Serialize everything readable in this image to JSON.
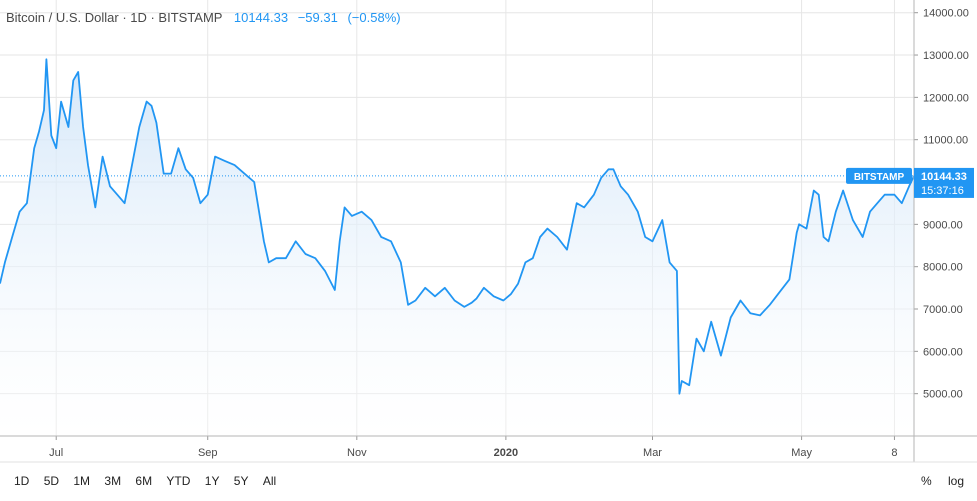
{
  "header": {
    "title": "Bitcoin / U.S. Dollar · 1D · BITSTAMP",
    "last": "10144.33",
    "change": "−59.31",
    "change_pct": "(−0.58%)"
  },
  "price_tag": {
    "exchange": "BITSTAMP",
    "value": "10144.33",
    "countdown": "15:37:16"
  },
  "toolbar": {
    "ranges": [
      "1D",
      "5D",
      "1M",
      "3M",
      "6M",
      "YTD",
      "1Y",
      "5Y",
      "All"
    ],
    "percent_label": "%",
    "log_label": "log"
  },
  "colors": {
    "line": "#2196f3",
    "fill_top": "#cfe4f8",
    "fill_bottom": "#ffffff",
    "grid": "#e6e6e6",
    "axis_text": "#4a4a4a",
    "price_tag_bg": "#2196f3",
    "price_tag_text": "#ffffff"
  },
  "chart_data": {
    "type": "area",
    "series_name": "BTCUSD",
    "ylim": [
      4000,
      14300
    ],
    "xlim": [
      "2019-06-08",
      "2020-06-16"
    ],
    "y_ticks": [
      5000,
      6000,
      7000,
      8000,
      9000,
      10000,
      11000,
      12000,
      13000,
      14000
    ],
    "y_tick_labels": [
      "5000.00",
      "6000.00",
      "7000.00",
      "8000.00",
      "9000.00",
      "10000.00",
      "11000.00",
      "12000.00",
      "13000.00",
      "14000.00"
    ],
    "x_ticks": [
      {
        "date": "2019-07-01",
        "label": "Jul",
        "bold": false
      },
      {
        "date": "2019-09-01",
        "label": "Sep",
        "bold": false
      },
      {
        "date": "2019-11-01",
        "label": "Nov",
        "bold": false
      },
      {
        "date": "2020-01-01",
        "label": "2020",
        "bold": true
      },
      {
        "date": "2020-03-01",
        "label": "Mar",
        "bold": false
      },
      {
        "date": "2020-05-01",
        "label": "May",
        "bold": false
      },
      {
        "date": "2020-06-08",
        "label": "8",
        "bold": false
      }
    ],
    "last_value": 10144.33,
    "x": [
      "2019-06-08",
      "2019-06-10",
      "2019-06-13",
      "2019-06-16",
      "2019-06-19",
      "2019-06-22",
      "2019-06-24",
      "2019-06-26",
      "2019-06-27",
      "2019-06-29",
      "2019-07-01",
      "2019-07-03",
      "2019-07-06",
      "2019-07-08",
      "2019-07-10",
      "2019-07-12",
      "2019-07-14",
      "2019-07-17",
      "2019-07-20",
      "2019-07-23",
      "2019-07-26",
      "2019-07-29",
      "2019-08-01",
      "2019-08-04",
      "2019-08-07",
      "2019-08-09",
      "2019-08-11",
      "2019-08-14",
      "2019-08-17",
      "2019-08-20",
      "2019-08-23",
      "2019-08-26",
      "2019-08-29",
      "2019-09-01",
      "2019-09-04",
      "2019-09-08",
      "2019-09-12",
      "2019-09-16",
      "2019-09-20",
      "2019-09-24",
      "2019-09-26",
      "2019-09-29",
      "2019-10-03",
      "2019-10-07",
      "2019-10-11",
      "2019-10-15",
      "2019-10-19",
      "2019-10-23",
      "2019-10-25",
      "2019-10-27",
      "2019-10-30",
      "2019-11-03",
      "2019-11-07",
      "2019-11-11",
      "2019-11-15",
      "2019-11-19",
      "2019-11-22",
      "2019-11-25",
      "2019-11-29",
      "2019-12-03",
      "2019-12-07",
      "2019-12-11",
      "2019-12-15",
      "2019-12-18",
      "2019-12-20",
      "2019-12-23",
      "2019-12-27",
      "2019-12-31",
      "2020-01-03",
      "2020-01-06",
      "2020-01-09",
      "2020-01-12",
      "2020-01-15",
      "2020-01-18",
      "2020-01-22",
      "2020-01-26",
      "2020-01-30",
      "2020-02-02",
      "2020-02-06",
      "2020-02-09",
      "2020-02-12",
      "2020-02-14",
      "2020-02-17",
      "2020-02-20",
      "2020-02-24",
      "2020-02-27",
      "2020-03-01",
      "2020-03-05",
      "2020-03-08",
      "2020-03-11",
      "2020-03-12",
      "2020-03-13",
      "2020-03-16",
      "2020-03-19",
      "2020-03-22",
      "2020-03-25",
      "2020-03-29",
      "2020-04-02",
      "2020-04-06",
      "2020-04-10",
      "2020-04-14",
      "2020-04-18",
      "2020-04-22",
      "2020-04-26",
      "2020-04-29",
      "2020-04-30",
      "2020-05-03",
      "2020-05-06",
      "2020-05-08",
      "2020-05-10",
      "2020-05-12",
      "2020-05-15",
      "2020-05-18",
      "2020-05-22",
      "2020-05-26",
      "2020-05-29",
      "2020-06-01",
      "2020-06-04",
      "2020-06-08",
      "2020-06-11",
      "2020-06-14",
      "2020-06-16"
    ],
    "y": [
      7600,
      8100,
      8700,
      9300,
      9500,
      10800,
      11200,
      11700,
      12900,
      11100,
      10800,
      11900,
      11300,
      12400,
      12600,
      11300,
      10400,
      9400,
      10600,
      9900,
      9700,
      9500,
      10400,
      11300,
      11900,
      11800,
      11400,
      10200,
      10200,
      10800,
      10300,
      10100,
      9500,
      9700,
      10600,
      10500,
      10400,
      10200,
      10000,
      8600,
      8100,
      8200,
      8200,
      8600,
      8300,
      8200,
      7900,
      7450,
      8600,
      9400,
      9200,
      9300,
      9100,
      8700,
      8600,
      8100,
      7100,
      7200,
      7500,
      7300,
      7500,
      7200,
      7050,
      7150,
      7250,
      7500,
      7300,
      7200,
      7350,
      7600,
      8100,
      8200,
      8700,
      8900,
      8700,
      8400,
      9500,
      9400,
      9700,
      10100,
      10300,
      10300,
      9900,
      9700,
      9300,
      8700,
      8600,
      9100,
      8100,
      7900,
      5000,
      5300,
      5200,
      6300,
      6000,
      6700,
      5900,
      6800,
      7200,
      6900,
      6850,
      7100,
      7400,
      7700,
      8800,
      9000,
      8900,
      9800,
      9700,
      8700,
      8600,
      9300,
      9800,
      9100,
      8700,
      9300,
      9500,
      9700,
      9700,
      9500,
      9900,
      10144
    ]
  }
}
